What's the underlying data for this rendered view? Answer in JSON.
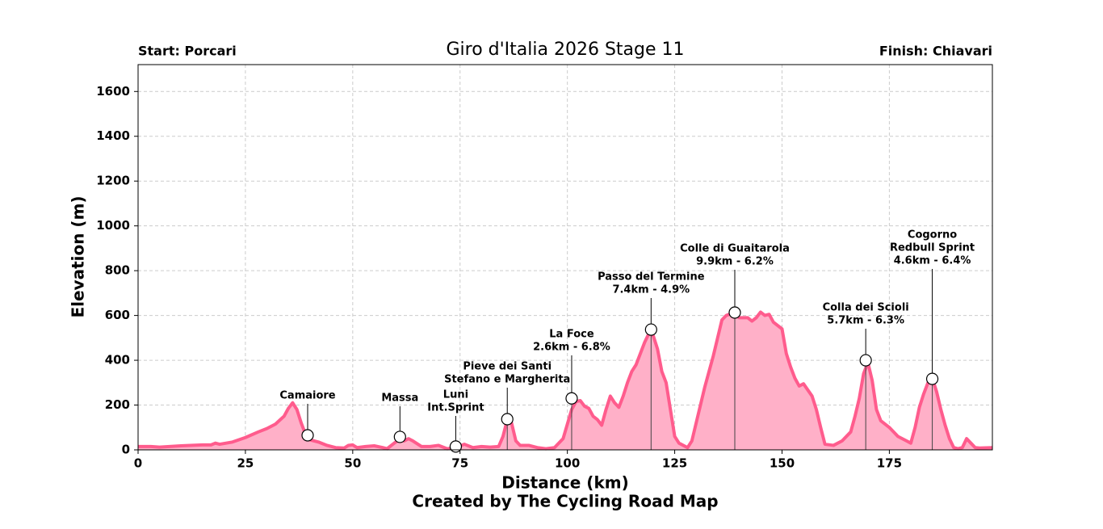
{
  "chart_data": {
    "type": "area",
    "title": "Giro d'Italia 2026 Stage 11",
    "start_label": "Start: Porcari",
    "finish_label": "Finish: Chiavari",
    "xlabel": "Distance (km)",
    "ylabel": "Elevation (m)",
    "credit": "Created by The Cycling Road Map",
    "xlim": [
      0,
      199
    ],
    "ylim": [
      0,
      1720
    ],
    "xticks": [
      0,
      25,
      50,
      75,
      100,
      125,
      150,
      175
    ],
    "yticks": [
      0,
      200,
      400,
      600,
      800,
      1000,
      1200,
      1400,
      1600
    ],
    "grid": true,
    "line_color": "#ff5c8d",
    "fill_color": "#ffb0c8",
    "x": [
      0,
      3,
      5,
      10,
      15,
      17,
      18,
      19,
      22,
      25,
      28,
      30,
      32,
      34,
      35,
      36,
      37,
      38,
      39,
      40,
      42,
      44,
      46,
      48,
      49,
      50,
      51,
      53,
      55,
      57,
      58,
      60,
      61,
      62,
      63,
      64,
      66,
      68,
      70,
      72,
      74,
      76,
      78,
      80,
      82,
      84,
      85,
      86,
      87,
      88,
      89,
      91,
      93,
      95,
      97,
      99,
      101,
      102,
      103,
      104,
      105,
      106,
      107,
      108,
      109,
      110,
      111,
      112,
      113,
      114,
      115,
      116,
      117,
      118,
      119,
      120,
      121,
      122,
      123,
      124,
      125,
      126,
      128,
      129,
      130,
      131,
      132,
      133,
      134,
      135,
      136,
      137,
      139,
      140,
      142,
      143,
      144,
      145,
      146,
      147,
      148,
      150,
      151,
      152,
      153,
      154,
      155,
      157,
      158,
      159,
      160,
      162,
      164,
      166,
      167,
      168,
      169,
      170,
      171,
      172,
      173,
      175,
      177,
      179,
      180,
      181,
      182,
      183,
      184,
      185,
      186,
      187,
      188,
      189,
      190,
      191,
      192,
      193,
      194,
      195,
      196,
      199
    ],
    "values": [
      15,
      15,
      12,
      18,
      22,
      22,
      30,
      25,
      35,
      55,
      80,
      95,
      115,
      150,
      185,
      210,
      180,
      120,
      70,
      45,
      35,
      20,
      10,
      8,
      20,
      22,
      10,
      15,
      18,
      10,
      5,
      35,
      45,
      40,
      50,
      40,
      15,
      15,
      20,
      5,
      10,
      25,
      10,
      15,
      12,
      15,
      60,
      135,
      120,
      40,
      20,
      20,
      10,
      5,
      10,
      50,
      180,
      215,
      220,
      195,
      185,
      150,
      135,
      110,
      180,
      240,
      210,
      190,
      240,
      300,
      350,
      380,
      430,
      480,
      520,
      510,
      450,
      350,
      300,
      180,
      60,
      30,
      10,
      40,
      120,
      200,
      280,
      350,
      420,
      500,
      580,
      600,
      615,
      590,
      590,
      575,
      590,
      615,
      600,
      605,
      570,
      540,
      430,
      370,
      320,
      285,
      295,
      240,
      180,
      100,
      25,
      20,
      40,
      80,
      150,
      230,
      340,
      390,
      310,
      180,
      130,
      100,
      60,
      40,
      30,
      100,
      190,
      250,
      300,
      320,
      260,
      180,
      110,
      50,
      10,
      5,
      10,
      50,
      30,
      10,
      8,
      10
    ],
    "markers": [
      {
        "label": [
          "Camaiore"
        ],
        "x": 39.5,
        "elevation": 65
      },
      {
        "label": [
          "Massa"
        ],
        "x": 61,
        "elevation": 58
      },
      {
        "label": [
          "Luni",
          "Int.Sprint"
        ],
        "x": 74,
        "elevation": 15
      },
      {
        "label": [
          "Pieve dei Santi",
          "Stefano e Margherita"
        ],
        "x": 86,
        "elevation": 137
      },
      {
        "label": [
          "La Foce",
          "2.6km - 6.8%"
        ],
        "x": 101,
        "elevation": 230
      },
      {
        "label": [
          "Passo del Termine",
          "7.4km - 4.9%"
        ],
        "x": 119.5,
        "elevation": 537
      },
      {
        "label": [
          "Colle di Guaitarola",
          "9.9km - 6.2%"
        ],
        "x": 139,
        "elevation": 613
      },
      {
        "label": [
          "Colla dei Scioli",
          "5.7km - 6.3%"
        ],
        "x": 169.5,
        "elevation": 400
      },
      {
        "label": [
          "Cogorno",
          "Redbull Sprint",
          "4.6km - 6.4%"
        ],
        "x": 185,
        "elevation": 317
      }
    ]
  }
}
